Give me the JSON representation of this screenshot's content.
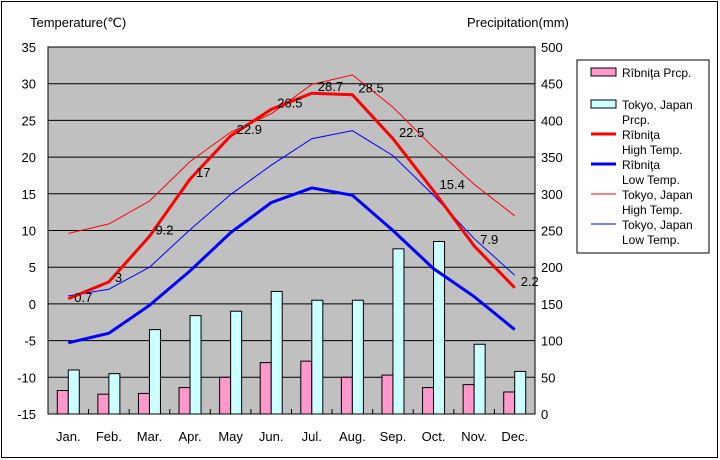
{
  "chart_data": {
    "type": "bar+line",
    "ylabel_left": "Temperature(℃)",
    "ylabel_right": "Precipitation(mm)",
    "ylim_left": [
      -15,
      35
    ],
    "ylim_right": [
      0,
      500
    ],
    "left_ticks": [
      "35",
      "30",
      "25",
      "20",
      "15",
      "10",
      "5",
      "0",
      "-5",
      "-10",
      "-15"
    ],
    "right_ticks": [
      "500",
      "450",
      "400",
      "350",
      "300",
      "250",
      "200",
      "150",
      "100",
      "50",
      "0"
    ],
    "categories": [
      "Jan.",
      "Feb.",
      "Mar.",
      "Apr.",
      "May",
      "Jun.",
      "Jul.",
      "Aug.",
      "Sep.",
      "Oct.",
      "Nov.",
      "Dec."
    ],
    "grid": true,
    "legend_placement": "right",
    "bars": [
      {
        "name": "Rîbniţa Prcp.",
        "color": "#ff99cc",
        "values": [
          32,
          27,
          28,
          36,
          50,
          70,
          72,
          50,
          53,
          36,
          40,
          30
        ]
      },
      {
        "name": "Tokyo, Japan Prcp.",
        "color": "#ccffff",
        "values": [
          60,
          55,
          115,
          134,
          140,
          167,
          155,
          155,
          225,
          235,
          95,
          58
        ]
      }
    ],
    "lines": [
      {
        "name": "Rîbniţa High Temp.",
        "color": "#ff0000",
        "width": 3,
        "values": [
          0.7,
          3,
          9.2,
          17,
          22.9,
          26.5,
          28.7,
          28.5,
          22.5,
          15.4,
          7.9,
          2.2
        ],
        "labels": [
          "0.7",
          "3",
          "9.2",
          "17",
          "22.9",
          "26.5",
          "28.7",
          "28.5",
          "22.5",
          "15.4",
          "7.9",
          "2.2"
        ]
      },
      {
        "name": "Rîbniţa Low Temp.",
        "color": "#0000ff",
        "width": 3,
        "values": [
          -5.3,
          -4,
          -0.2,
          4.5,
          9.7,
          13.8,
          15.8,
          14.8,
          10,
          4.8,
          1,
          -3.5
        ]
      },
      {
        "name": "Tokyo, Japan High Temp.",
        "color": "#ff0000",
        "width": 1,
        "values": [
          9.6,
          10.9,
          14,
          19.4,
          23.4,
          25.9,
          29.9,
          31.2,
          26.8,
          21.3,
          16.3,
          12
        ]
      },
      {
        "name": "Tokyo, Japan Low Temp.",
        "color": "#0000ff",
        "width": 1,
        "values": [
          1.1,
          2,
          5,
          10.1,
          14.9,
          18.9,
          22.5,
          23.6,
          20.2,
          14.8,
          8.9,
          3.9
        ]
      }
    ],
    "legend": [
      {
        "label": "Rîbniţa Prcp.",
        "kind": "box",
        "color": "#ff99cc"
      },
      {
        "label": "Tokyo, Japan Prcp.",
        "kind": "box",
        "color": "#ccffff"
      },
      {
        "label": "Rîbniţa High Temp.",
        "kind": "line",
        "color": "#ff0000",
        "w": 3
      },
      {
        "label": "Rîbniţa Low Temp.",
        "kind": "line",
        "color": "#0000ff",
        "w": 3
      },
      {
        "label": "Tokyo, Japan High Temp.",
        "kind": "line",
        "color": "#ff0000",
        "w": 1
      },
      {
        "label": "Tokyo, Japan Low Temp.",
        "kind": "line",
        "color": "#0000ff",
        "w": 1
      }
    ]
  }
}
